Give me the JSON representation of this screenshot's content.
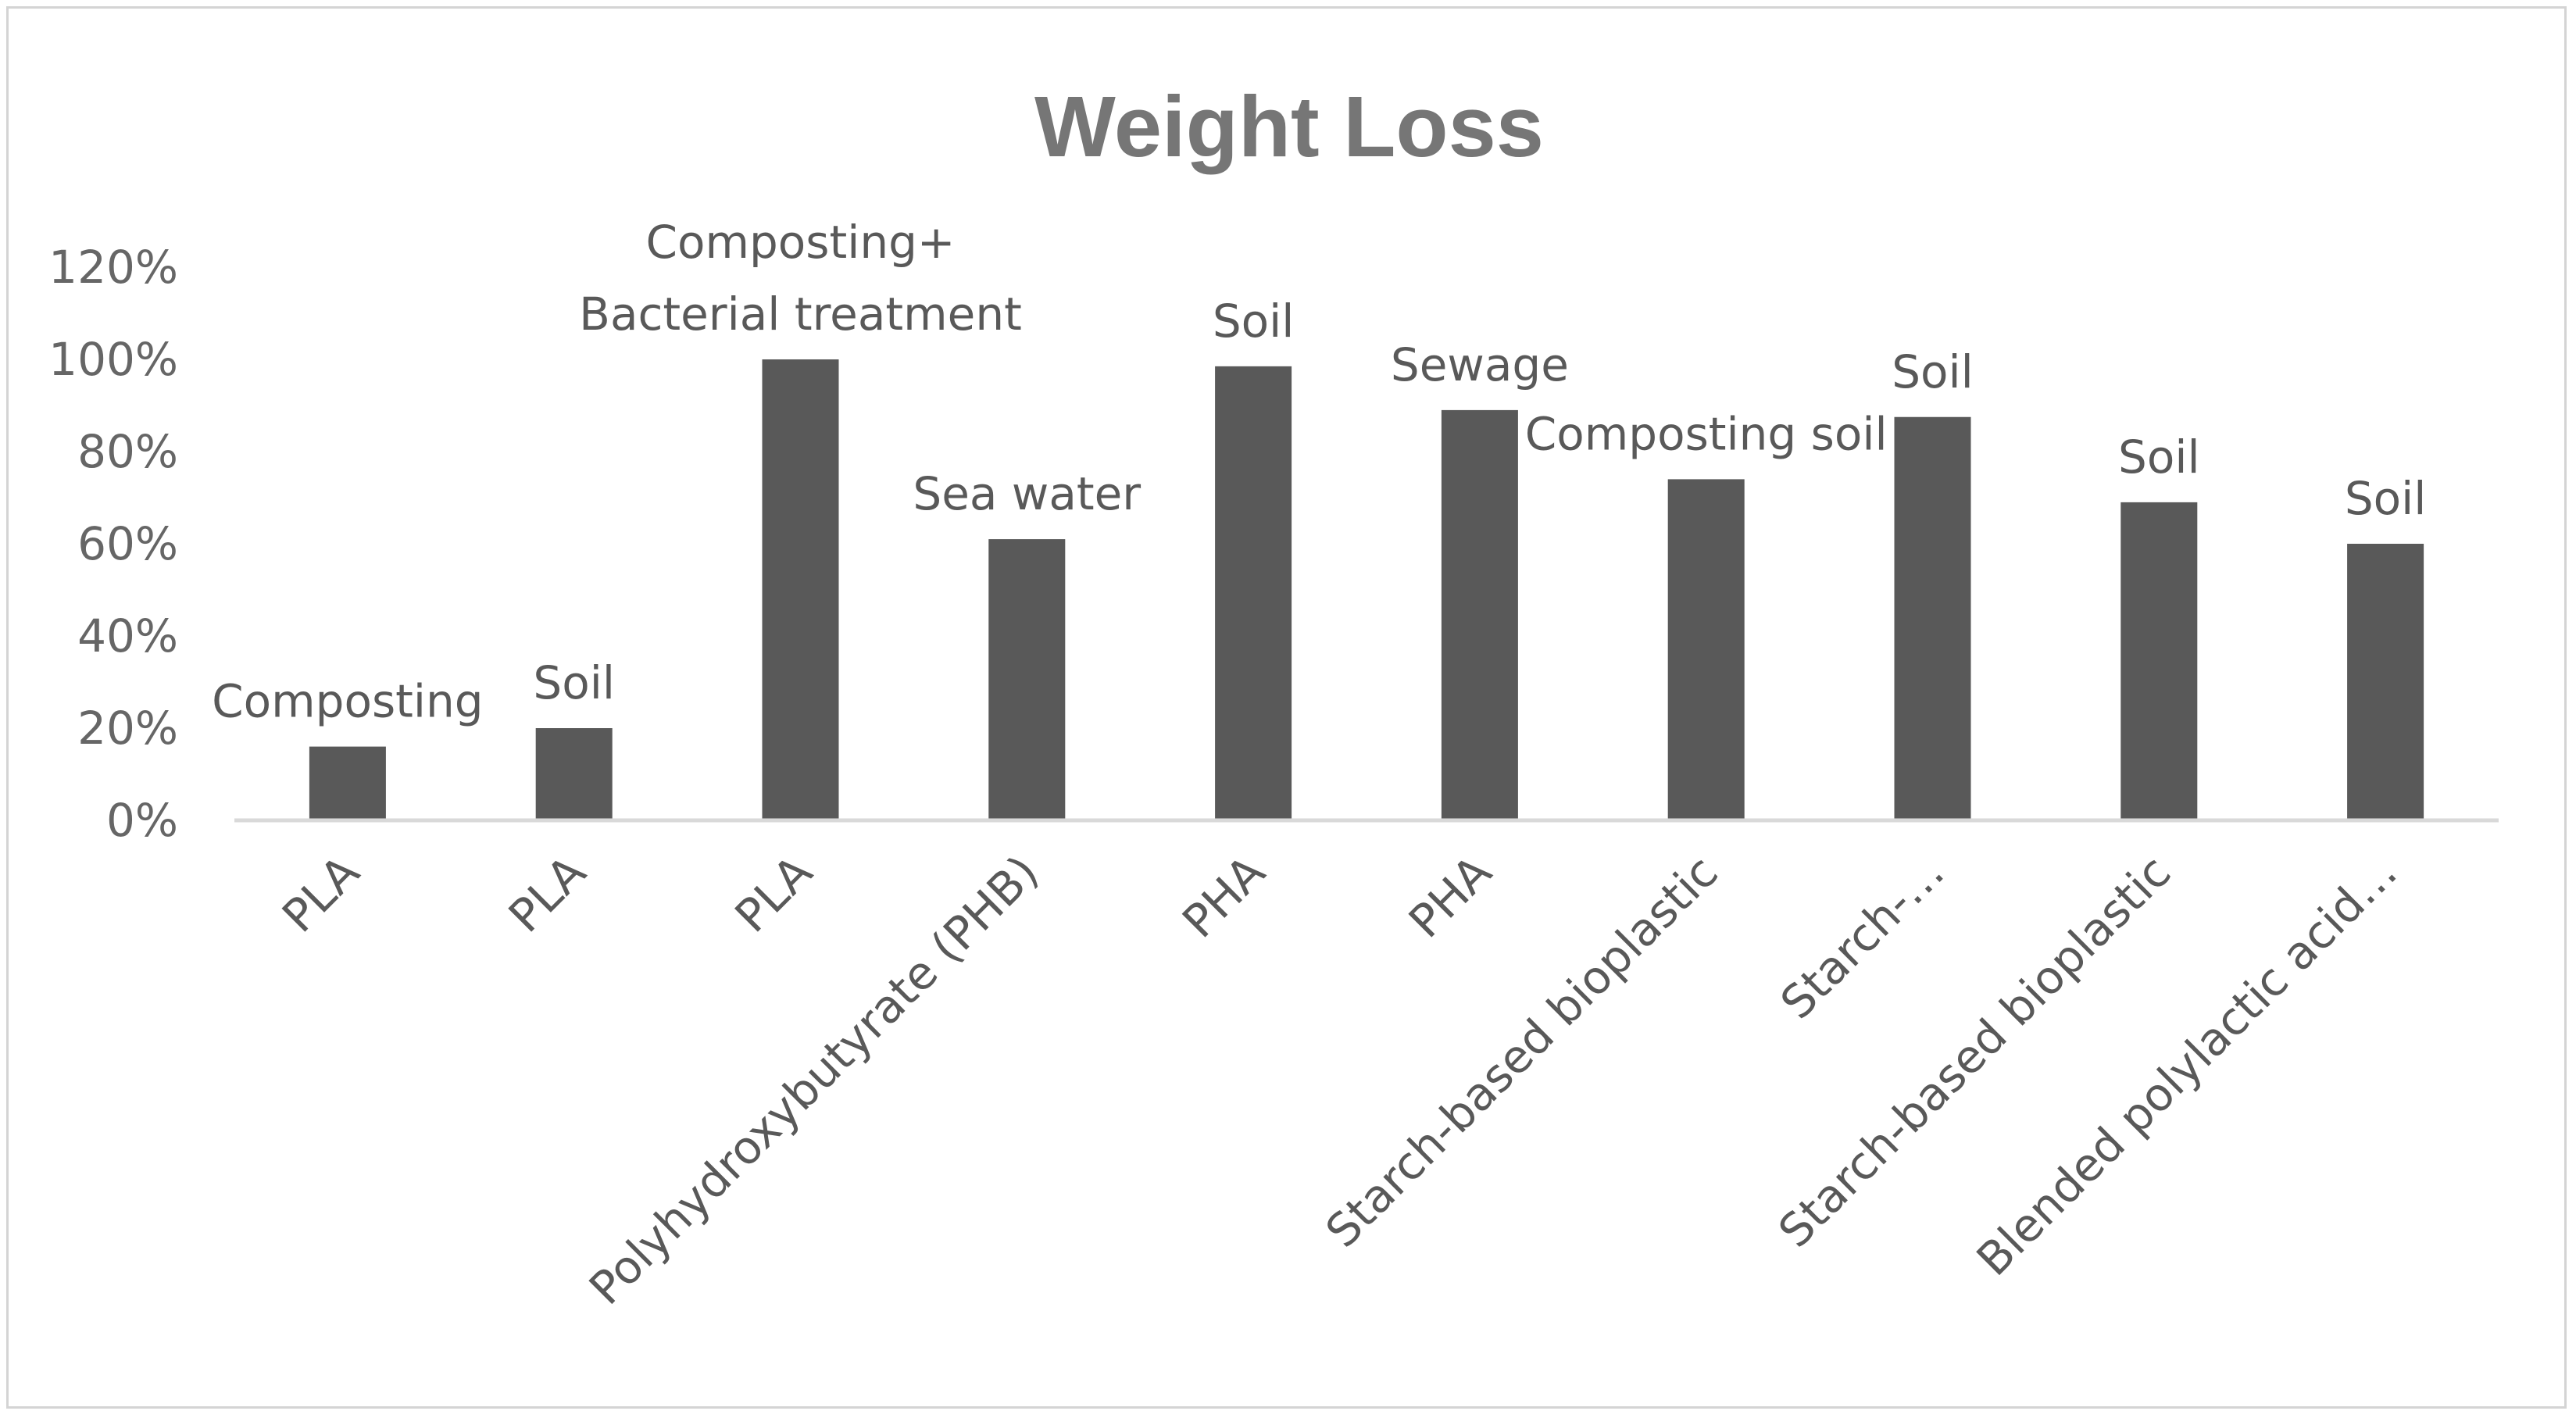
{
  "chart_data": {
    "type": "bar",
    "title": "Weight Loss",
    "xlabel": "",
    "ylabel": "",
    "ylim": [
      0,
      1.2
    ],
    "y_ticks": [
      "0%",
      "20%",
      "40%",
      "60%",
      "80%",
      "100%",
      "120%"
    ],
    "grid": false,
    "legend": "none",
    "bar_color": "#595959",
    "categories": [
      "PLA",
      "PLA",
      "PLA",
      "Polyhydroxybutyrate (PHB)",
      "PHA",
      "PHA",
      "Starch-based bioplastic",
      "Starch-…",
      "Starch-based bioplastic",
      "Blended polylactic acid…"
    ],
    "values": [
      0.16,
      0.2,
      1.0,
      0.61,
      0.985,
      0.89,
      0.74,
      0.875,
      0.69,
      0.6
    ],
    "data_labels": [
      [
        "Composting"
      ],
      [
        "Soil"
      ],
      [
        "Composting+",
        "Bacterial treatment"
      ],
      [
        "Sea water"
      ],
      [
        "Soil"
      ],
      [
        "Sewage"
      ],
      [
        "Composting soil"
      ],
      [
        "Soil"
      ],
      [
        "Soil"
      ],
      [
        "Soil"
      ]
    ]
  }
}
